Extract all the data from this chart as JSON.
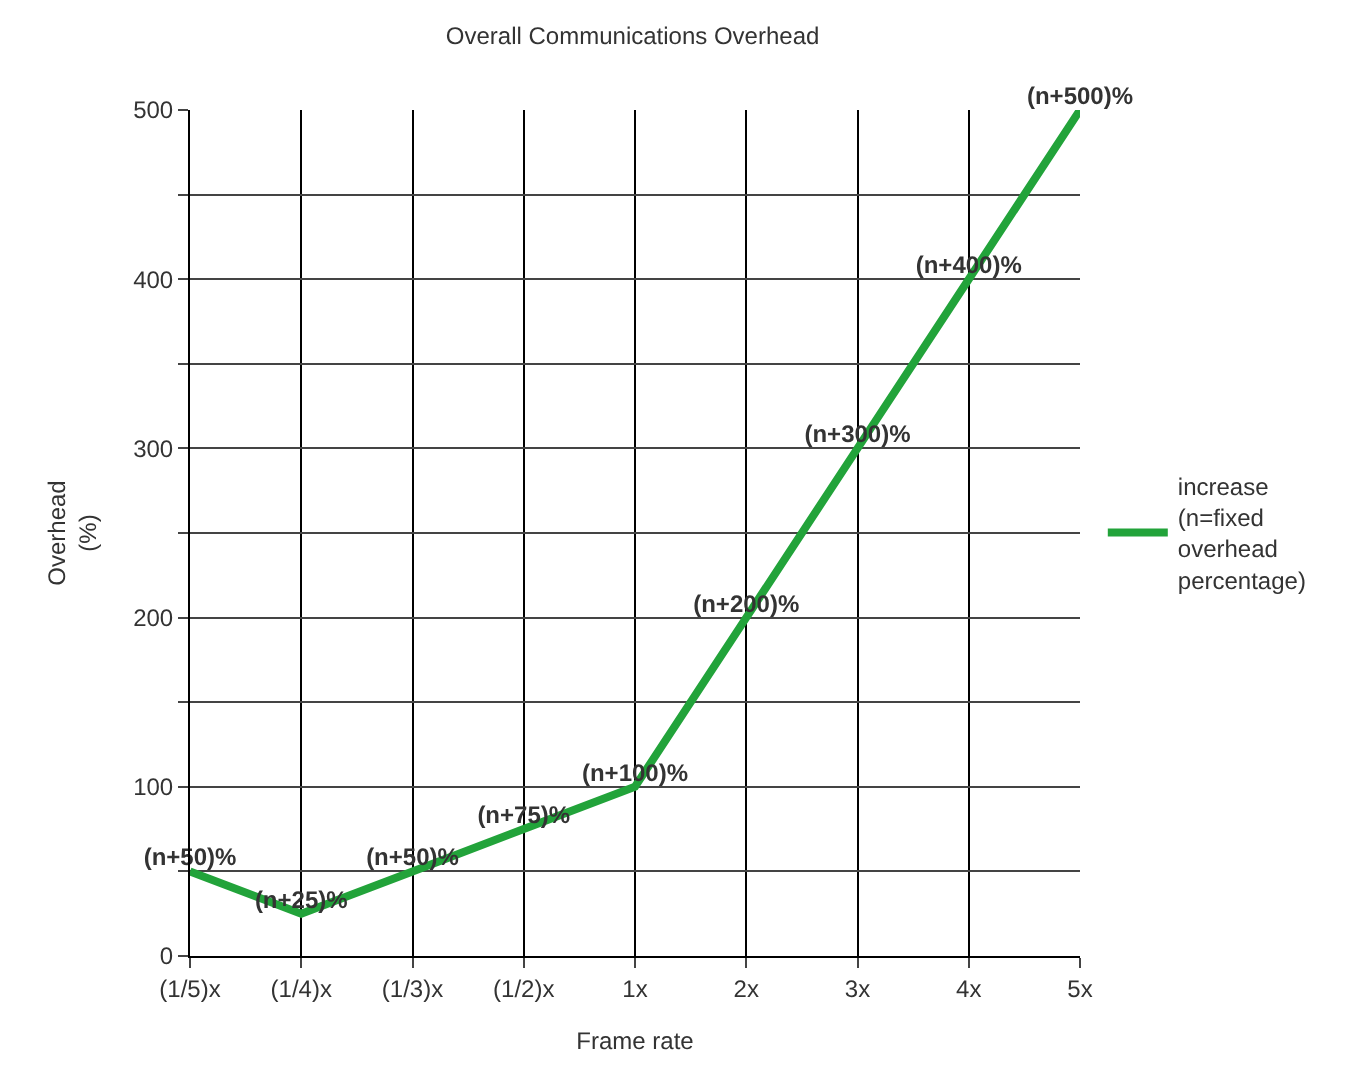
{
  "chart_data": {
    "type": "line",
    "title": "Overall Communications Overhead",
    "xlabel": "Frame rate",
    "ylabel": "Overhead (%)",
    "categories": [
      "(1/5)x",
      "(1/4)x",
      "(1/3)x",
      "(1/2)x",
      "1x",
      "2x",
      "3x",
      "4x",
      "5x"
    ],
    "series": [
      {
        "name": "increase (n=fixed overhead percentage)",
        "color": "#22a33a",
        "values": [
          50,
          25,
          50,
          75,
          100,
          200,
          300,
          400,
          500
        ],
        "value_labels": [
          "(n+50)%",
          "(n+25)%",
          "(n+50)%",
          "(n+75)%",
          "(n+100)%",
          "(n+200)%",
          "(n+300)%",
          "(n+400)%",
          "(n+500)%"
        ]
      }
    ],
    "ylim": [
      0,
      500
    ],
    "yticks": [
      0,
      {
        "value": 50,
        "label": null
      },
      100,
      {
        "value": 150,
        "label": null
      },
      200,
      {
        "value": 250,
        "label": null
      },
      300,
      {
        "value": 350,
        "label": null
      },
      400,
      {
        "value": 450,
        "label": null
      },
      500
    ],
    "grid": true,
    "legend": "right",
    "marker": "none",
    "line_style": "solid"
  }
}
